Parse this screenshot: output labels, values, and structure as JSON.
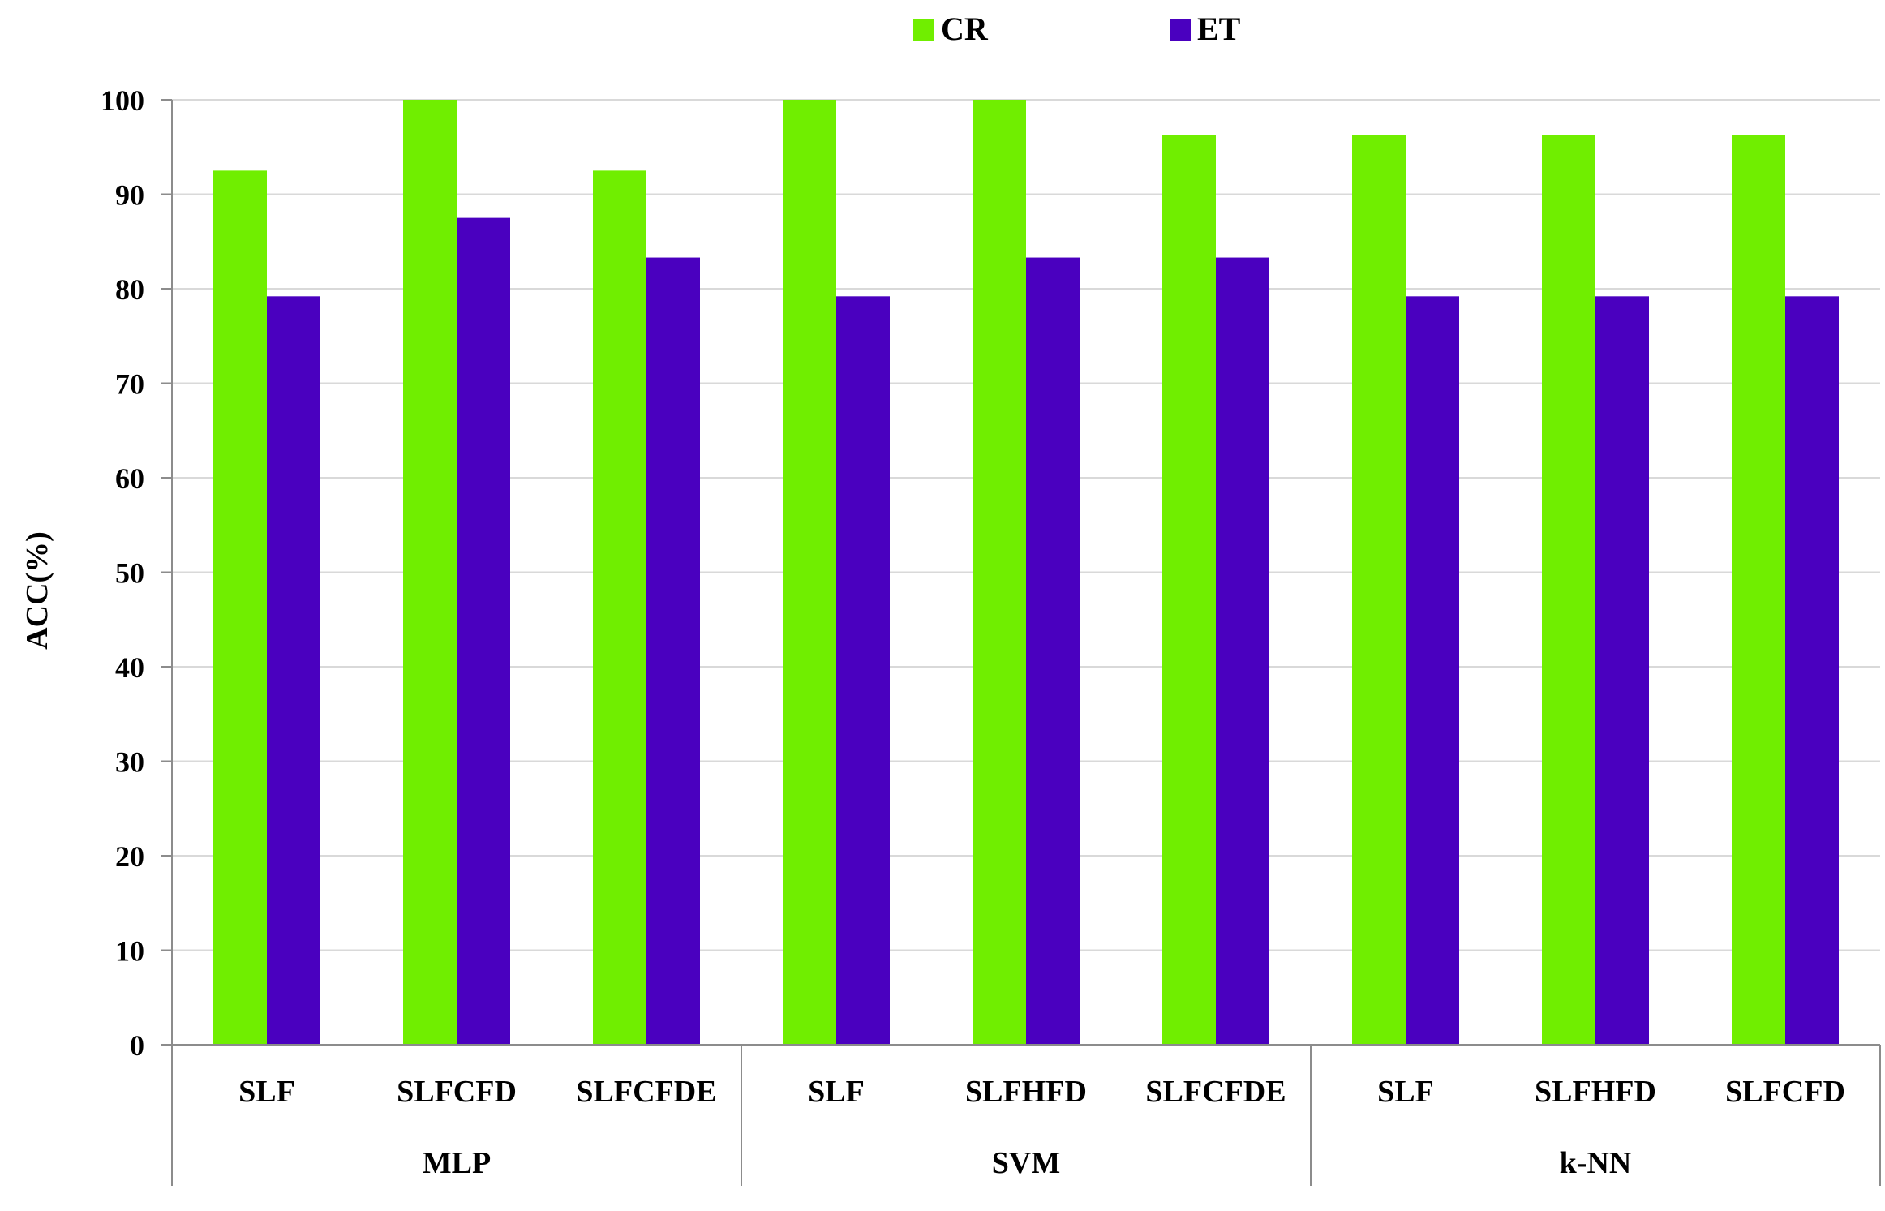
{
  "chart_data": {
    "type": "bar",
    "title": "",
    "xlabel": "",
    "ylabel": "ACC(%)",
    "ylim": [
      0,
      100
    ],
    "yticks": [
      0,
      10,
      20,
      30,
      40,
      50,
      60,
      70,
      80,
      90,
      100
    ],
    "grid": true,
    "legend_position": "top-center",
    "groups": [
      {
        "name": "MLP",
        "categories": [
          "SLF",
          "SLFCFD",
          "SLFCFDE"
        ]
      },
      {
        "name": "SVM",
        "categories": [
          "SLF",
          "SLFHFD",
          "SLFCFDE"
        ]
      },
      {
        "name": "k-NN",
        "categories": [
          "SLF",
          "SLFHFD",
          "SLFCFD"
        ]
      }
    ],
    "series": [
      {
        "name": "CR",
        "color": "#70ee00",
        "values": [
          92.5,
          100,
          92.5,
          100,
          100,
          96.3,
          96.3,
          96.3,
          96.3
        ]
      },
      {
        "name": "ET",
        "color": "#4a00bf",
        "values": [
          79.2,
          87.5,
          83.3,
          79.2,
          83.3,
          83.3,
          79.2,
          79.2,
          79.2
        ]
      }
    ]
  }
}
